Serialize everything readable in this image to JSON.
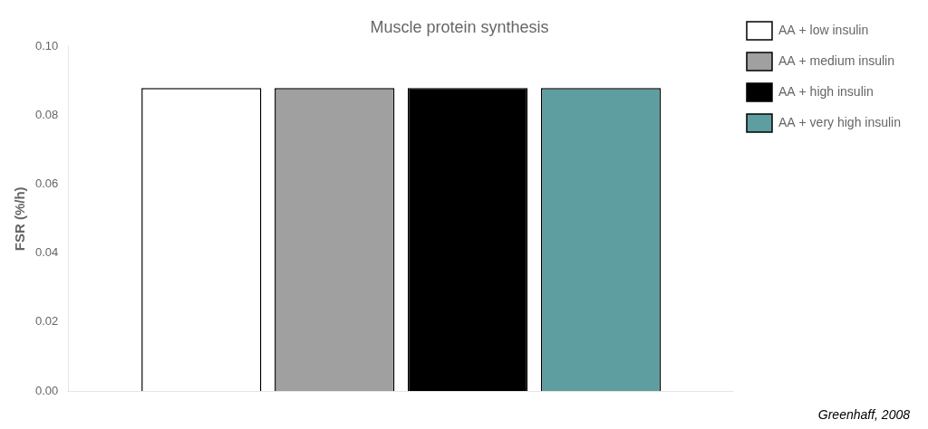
{
  "chart_data": {
    "type": "bar",
    "title": "Muscle protein synthesis",
    "ylabel": "FSR (%/h)",
    "categories": [
      null
    ],
    "series": [
      {
        "name": "AA + low insulin",
        "color": "#ffffff",
        "values": [
          0.088
        ]
      },
      {
        "name": "AA + medium insulin",
        "color": "#a0a0a0",
        "values": [
          0.088
        ]
      },
      {
        "name": "AA + high insulin",
        "color": "#000000",
        "values": [
          0.088
        ]
      },
      {
        "name": "AA + very high insulin",
        "color": "#5f9ea0",
        "values": [
          0.088
        ]
      }
    ],
    "ylim": [
      0.0,
      0.1
    ],
    "yticks": [
      {
        "value": 0.0,
        "label": "0.00"
      },
      0.02,
      0.04,
      0.06,
      0.08,
      {
        "value": 0.1,
        "label": "0.10"
      }
    ],
    "grid": false,
    "legend": "right",
    "tick_labels": "y",
    "annotations": [
      "Greenhaff, 2008"
    ]
  }
}
